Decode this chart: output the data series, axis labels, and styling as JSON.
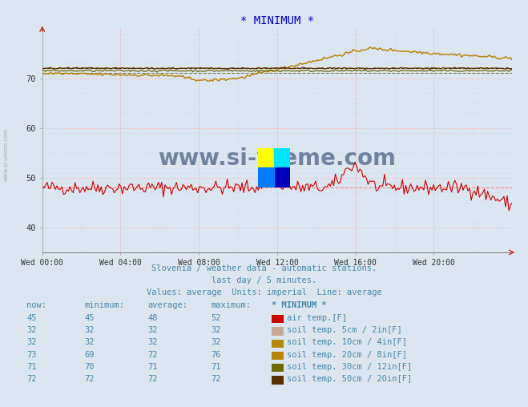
{
  "title": "* MINIMUM *",
  "title_color": "#0000cc",
  "bg_color": "#dce6f0",
  "plot_bg_color": "#dce6f0",
  "xlabel": "",
  "ylabel": "",
  "ylim": [
    35,
    80
  ],
  "yticks": [
    40,
    50,
    60,
    70
  ],
  "xlim": [
    0,
    288
  ],
  "xtick_positions": [
    0,
    48,
    96,
    144,
    192,
    240
  ],
  "xtick_labels": [
    "Wed 00:00",
    "Wed 04:00",
    "Wed 08:00",
    "Wed 12:00",
    "Wed 16:00",
    "Wed 20:00"
  ],
  "subtitle1": "Slovenia / weather data - automatic stations.",
  "subtitle2": "last day / 5 minutes.",
  "subtitle3": "Values: average  Units: imperial  Line: average",
  "subtitle_color": "#4488aa",
  "watermark": "www.si-vreme.com",
  "watermark_color": "#1a3060",
  "grid_color_major": "#ffaaaa",
  "grid_color_minor": "#ccccdd",
  "legend_headers": [
    "now:",
    "minimum:",
    "average:",
    "maximum:",
    "* MINIMUM *"
  ],
  "legend_rows": [
    [
      45,
      45,
      48,
      52,
      "air temp.[F]",
      "#cc0000"
    ],
    [
      32,
      32,
      32,
      32,
      "soil temp. 5cm / 2in[F]",
      "#c8a898"
    ],
    [
      32,
      32,
      32,
      32,
      "soil temp. 10cm / 4in[F]",
      "#b8860b"
    ],
    [
      73,
      69,
      72,
      76,
      "soil temp. 20cm / 8in[F]",
      "#b8860b"
    ],
    [
      71,
      70,
      71,
      71,
      "soil temp. 30cm / 12in[F]",
      "#6b6b00"
    ],
    [
      72,
      72,
      72,
      72,
      "soil temp. 50cm / 20in[F]",
      "#5a3000"
    ]
  ],
  "legend_color": "#4488aa",
  "air_avg": 48,
  "soil20_avg": 72,
  "soil30_avg": 71,
  "soil50_avg": 72,
  "logo_quadrants": [
    "#ffff00",
    "#00e5ff",
    "#0000bb",
    "#007bff"
  ]
}
